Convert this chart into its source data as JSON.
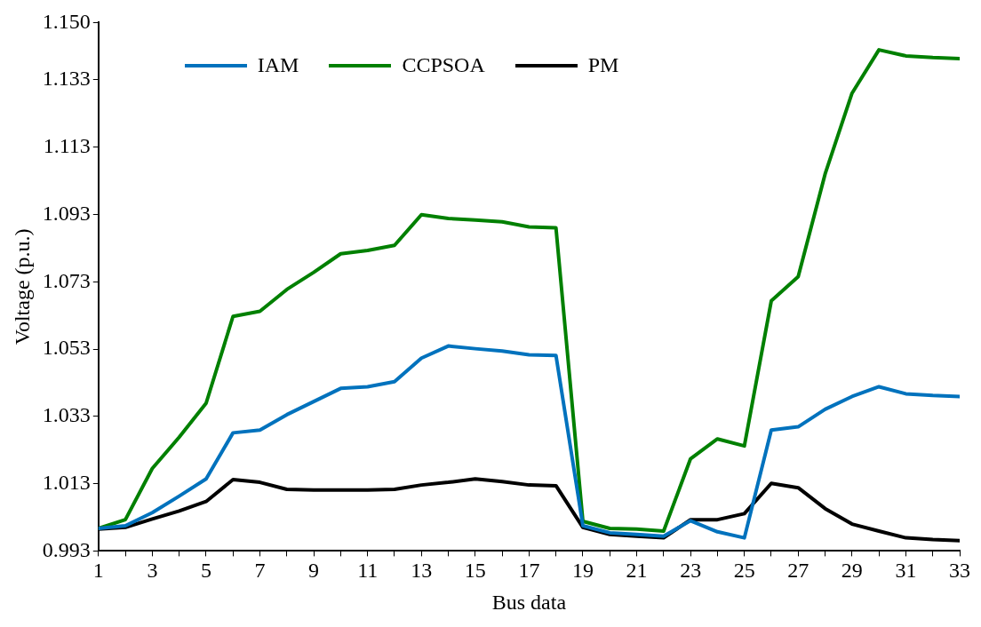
{
  "chart_data": {
    "type": "line",
    "xlabel": "Bus data",
    "ylabel": "Voltage (p.u.)",
    "x": [
      1,
      2,
      3,
      4,
      5,
      6,
      7,
      8,
      9,
      10,
      11,
      12,
      13,
      14,
      15,
      16,
      17,
      18,
      19,
      20,
      21,
      22,
      23,
      24,
      25,
      26,
      27,
      28,
      29,
      30,
      31,
      32,
      33
    ],
    "series": [
      {
        "name": "IAM",
        "color": "#0072bd",
        "values": [
          0.9997,
          1.0005,
          1.0044,
          1.0093,
          1.0144,
          1.0281,
          1.0289,
          1.0335,
          1.0374,
          1.0413,
          1.0418,
          1.0433,
          1.0503,
          1.0539,
          1.0531,
          1.0524,
          1.0513,
          1.0511,
          1.0005,
          0.9984,
          0.9979,
          0.9974,
          1.002,
          0.9987,
          0.9969,
          1.0289,
          1.0299,
          1.0351,
          1.0389,
          1.0418,
          1.0397,
          1.0392,
          1.0389
        ]
      },
      {
        "name": "CCPSOA",
        "color": "#008000",
        "values": [
          0.9997,
          1.0023,
          1.0175,
          1.0268,
          1.0369,
          1.0627,
          1.0642,
          1.0707,
          1.0758,
          1.0813,
          1.0823,
          1.0838,
          1.0929,
          1.0918,
          1.0913,
          1.0908,
          1.0893,
          1.089,
          1.0018,
          0.9997,
          0.9995,
          0.9989,
          1.0204,
          1.0263,
          1.0242,
          1.0673,
          1.0745,
          1.105,
          1.129,
          1.1419,
          1.1401,
          1.1396,
          1.1393
        ]
      },
      {
        "name": "PM",
        "color": "#000000",
        "values": [
          0.9995,
          1.0,
          1.0025,
          1.0049,
          1.0077,
          1.0142,
          1.0134,
          1.0113,
          1.0111,
          1.0111,
          1.0111,
          1.0113,
          1.0126,
          1.0134,
          1.0144,
          1.0136,
          1.0126,
          1.0124,
          1.0,
          0.9979,
          0.9974,
          0.9969,
          1.0023,
          1.0023,
          1.0041,
          1.0131,
          1.0118,
          1.0056,
          1.001,
          0.9989,
          0.9969,
          0.9964,
          0.9961
        ]
      }
    ],
    "xlim": [
      1,
      33
    ],
    "xticks": [
      1,
      {
        "value": 2,
        "label": null
      },
      3,
      {
        "value": 4,
        "label": null
      },
      5,
      {
        "value": 6,
        "label": null
      },
      7,
      {
        "value": 8,
        "label": null
      },
      9,
      {
        "value": 10,
        "label": null
      },
      11,
      {
        "value": 12,
        "label": null
      },
      13,
      {
        "value": 14,
        "label": null
      },
      15,
      {
        "value": 16,
        "label": null
      },
      17,
      {
        "value": 18,
        "label": null
      },
      19,
      {
        "value": 20,
        "label": null
      },
      21,
      {
        "value": 22,
        "label": null
      },
      23,
      {
        "value": 24,
        "label": null
      },
      25,
      {
        "value": 26,
        "label": null
      },
      27,
      {
        "value": 28,
        "label": null
      },
      29,
      {
        "value": 30,
        "label": null
      },
      31,
      {
        "value": 32,
        "label": null
      },
      33
    ],
    "ylim": [
      0.993,
      1.15
    ],
    "yticks": [
      0.993,
      1.013,
      1.033,
      1.053,
      1.073,
      1.093,
      1.113,
      1.133,
      {
        "value": 1.15,
        "label": "1.150"
      }
    ],
    "grid": false,
    "legend": "top left",
    "marker": "none",
    "line_style": "solid"
  }
}
